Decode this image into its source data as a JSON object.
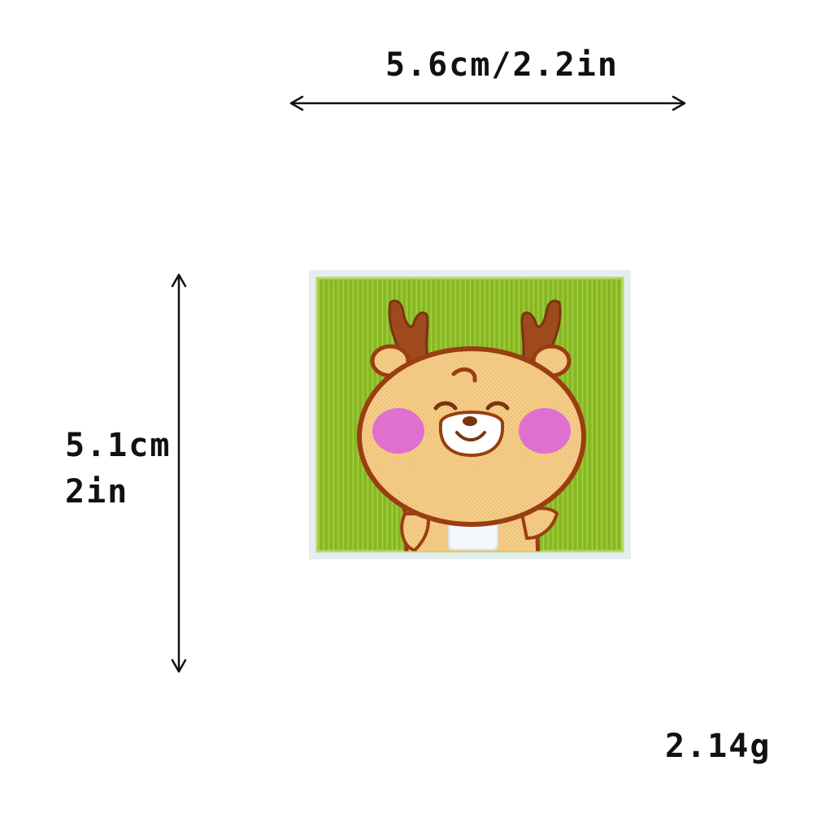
{
  "dimensions": {
    "width_label": "5.6cm/2.2in",
    "height_label_cm": "5.1cm",
    "height_label_in": "2in"
  },
  "weight_label": "2.14g",
  "colors": {
    "patch_border": "#e4eef0",
    "patch_green": "#8fbf2a",
    "deer_body": "#f0c27a",
    "deer_outline": "#9a3e12",
    "antler": "#9e4a1e",
    "cheek": "#e070d0",
    "muzzle": "#ffffff",
    "arrow": "#111111"
  },
  "icons": {
    "horizontal_arrow": "double-headed-arrow-horizontal",
    "vertical_arrow": "double-headed-arrow-vertical"
  }
}
